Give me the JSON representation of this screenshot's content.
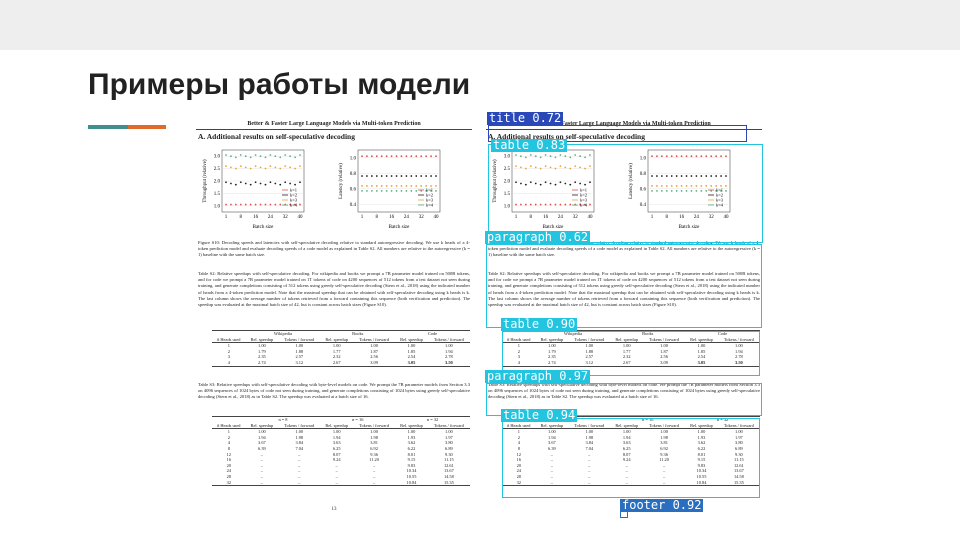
{
  "slide": {
    "title": "Примеры работы модели",
    "accent_colors": [
      "#3f8f8e",
      "#e06a2a"
    ]
  },
  "paper": {
    "header": "Better & Faster Large Language Models via Multi-token Prediction",
    "section": "A. Additional results on self-speculative decoding",
    "page_number": "13",
    "figure_caption": "Figure S10: Decoding speeds and latencies with self-speculative decoding relative to standard autoregressive decoding. We use k heads of a 4-token prediction model and evaluate decoding speeds of a code model as explained in Table S2. All numbers are relative to the autoregressive (k = 1) baseline with the same batch size.",
    "table_s2_caption": "Table S2: Relative speedups with self-speculative decoding. For wikipedia and books we prompt a 7B parameter model trained on 500B tokens, and for code we prompt a 7B parameter model trained on 1T tokens of code on 4200 sequences of 512 tokens from a test dataset not seen during training, and generate completions consisting of 512 tokens using greedy self-speculative decoding (Stern et al., 2018) using the indicated number of heads from a 4-token prediction model. Note that the maximal speedup that can be obtained with self-speculative decoding using k heads is k. The last column shows the average number of tokens retrieved from a forward containing this sequence (both verification and prediction). The speedup was evaluated at the maximal batch size of 42, but is constant across batch sizes (Figure S10).",
    "table_s3_caption": "Table S3: Relative speedups with self-speculative decoding with byte-level models on code. We prompt the 7B parameter models from Section 3.3 on 4096 sequences of 1024 bytes of code not seen during training, and generate completions consisting of 1024 bytes using greedy self-speculative decoding (Stern et al., 2018) as in Table S2. The speedup was evaluated at a batch size of 16.",
    "plot_left": {
      "ylabel": "Throughput (relative)",
      "xlabel": "Batch size",
      "yticks": [
        "1.0",
        "1.5",
        "2.0",
        "2.5",
        "3.0"
      ],
      "xticks": [
        "1",
        "8",
        "16",
        "24",
        "32",
        "40"
      ]
    },
    "plot_right": {
      "ylabel": "Latency (relative)",
      "xlabel": "Batch size",
      "yticks": [
        "0.4",
        "0.6",
        "0.8",
        "1.0"
      ],
      "xticks": [
        "1",
        "8",
        "16",
        "24",
        "32",
        "40"
      ]
    },
    "legend": [
      "k=1",
      "k=2",
      "k=3",
      "k=4"
    ],
    "series_colors": [
      "#d9534f",
      "#222222",
      "#e8a33d",
      "#5bb08a"
    ],
    "table_s2": {
      "groups": [
        "Wikipedia",
        "Books",
        "Code"
      ],
      "columns": [
        "# Heads used",
        "Rel. speedup",
        "Tokens / forward",
        "Rel. speedup",
        "Tokens / forward",
        "Rel. speedup",
        "Tokens / forward"
      ],
      "rows": [
        [
          "1",
          "1.00",
          "1.00",
          "1.00",
          "1.00",
          "1.00",
          "1.00"
        ],
        [
          "2",
          "1.79",
          "1.88",
          "1.77",
          "1.87",
          "1.85",
          "1.94"
        ],
        [
          "3",
          "2.35",
          "2.57",
          "2.32",
          "2.56",
          "2.54",
          "2.78"
        ],
        [
          "4",
          "2.74",
          "3.12",
          "2.67",
          "3.09",
          "3.05",
          "3.50"
        ]
      ]
    },
    "table_s3": {
      "groups": [
        "n = 8",
        "n = 16",
        "n = 32"
      ],
      "columns": [
        "# Heads used",
        "Rel. speedup",
        "Tokens / forward",
        "Rel. speedup",
        "Tokens / forward",
        "Rel. speedup",
        "Tokens / forward"
      ],
      "rows": [
        [
          "1",
          "1.00",
          "1.00",
          "1.00",
          "1.00",
          "1.00",
          "1.00"
        ],
        [
          "2",
          "1.94",
          "1.98",
          "1.94",
          "1.98",
          "1.93",
          "1.97"
        ],
        [
          "4",
          "3.67",
          "3.84",
          "3.63",
          "3.81",
          "3.62",
          "3.80"
        ],
        [
          "8",
          "6.39",
          "7.04",
          "6.25",
          "6.92",
          "6.22",
          "6.89"
        ],
        [
          "12",
          "–",
          "–",
          "8.07",
          "9.36",
          "8.01",
          "9.30"
        ],
        [
          "16",
          "–",
          "–",
          "9.24",
          "11.20",
          "9.15",
          "11.15"
        ],
        [
          "20",
          "–",
          "–",
          "–",
          "–",
          "9.83",
          "12.61"
        ],
        [
          "24",
          "–",
          "–",
          "–",
          "–",
          "10.34",
          "13.67"
        ],
        [
          "28",
          "–",
          "–",
          "–",
          "–",
          "10.55",
          "14.58"
        ],
        [
          "32",
          "–",
          "–",
          "–",
          "–",
          "10.84",
          "15.35"
        ]
      ]
    }
  },
  "detections": [
    {
      "label": "title 0.72",
      "color": "#2a48b8"
    },
    {
      "label": "table 0.83",
      "color": "#22c4e0"
    },
    {
      "label": "paragraph 0.62",
      "color": "#22c4e0"
    },
    {
      "label": "table 0.90",
      "color": "#22c4e0"
    },
    {
      "label": "paragraph 0.97",
      "color": "#22c4e0"
    },
    {
      "label": "table 0.94",
      "color": "#22c4e0"
    },
    {
      "label": "footer 0.92",
      "color": "#2a6fbf"
    }
  ]
}
